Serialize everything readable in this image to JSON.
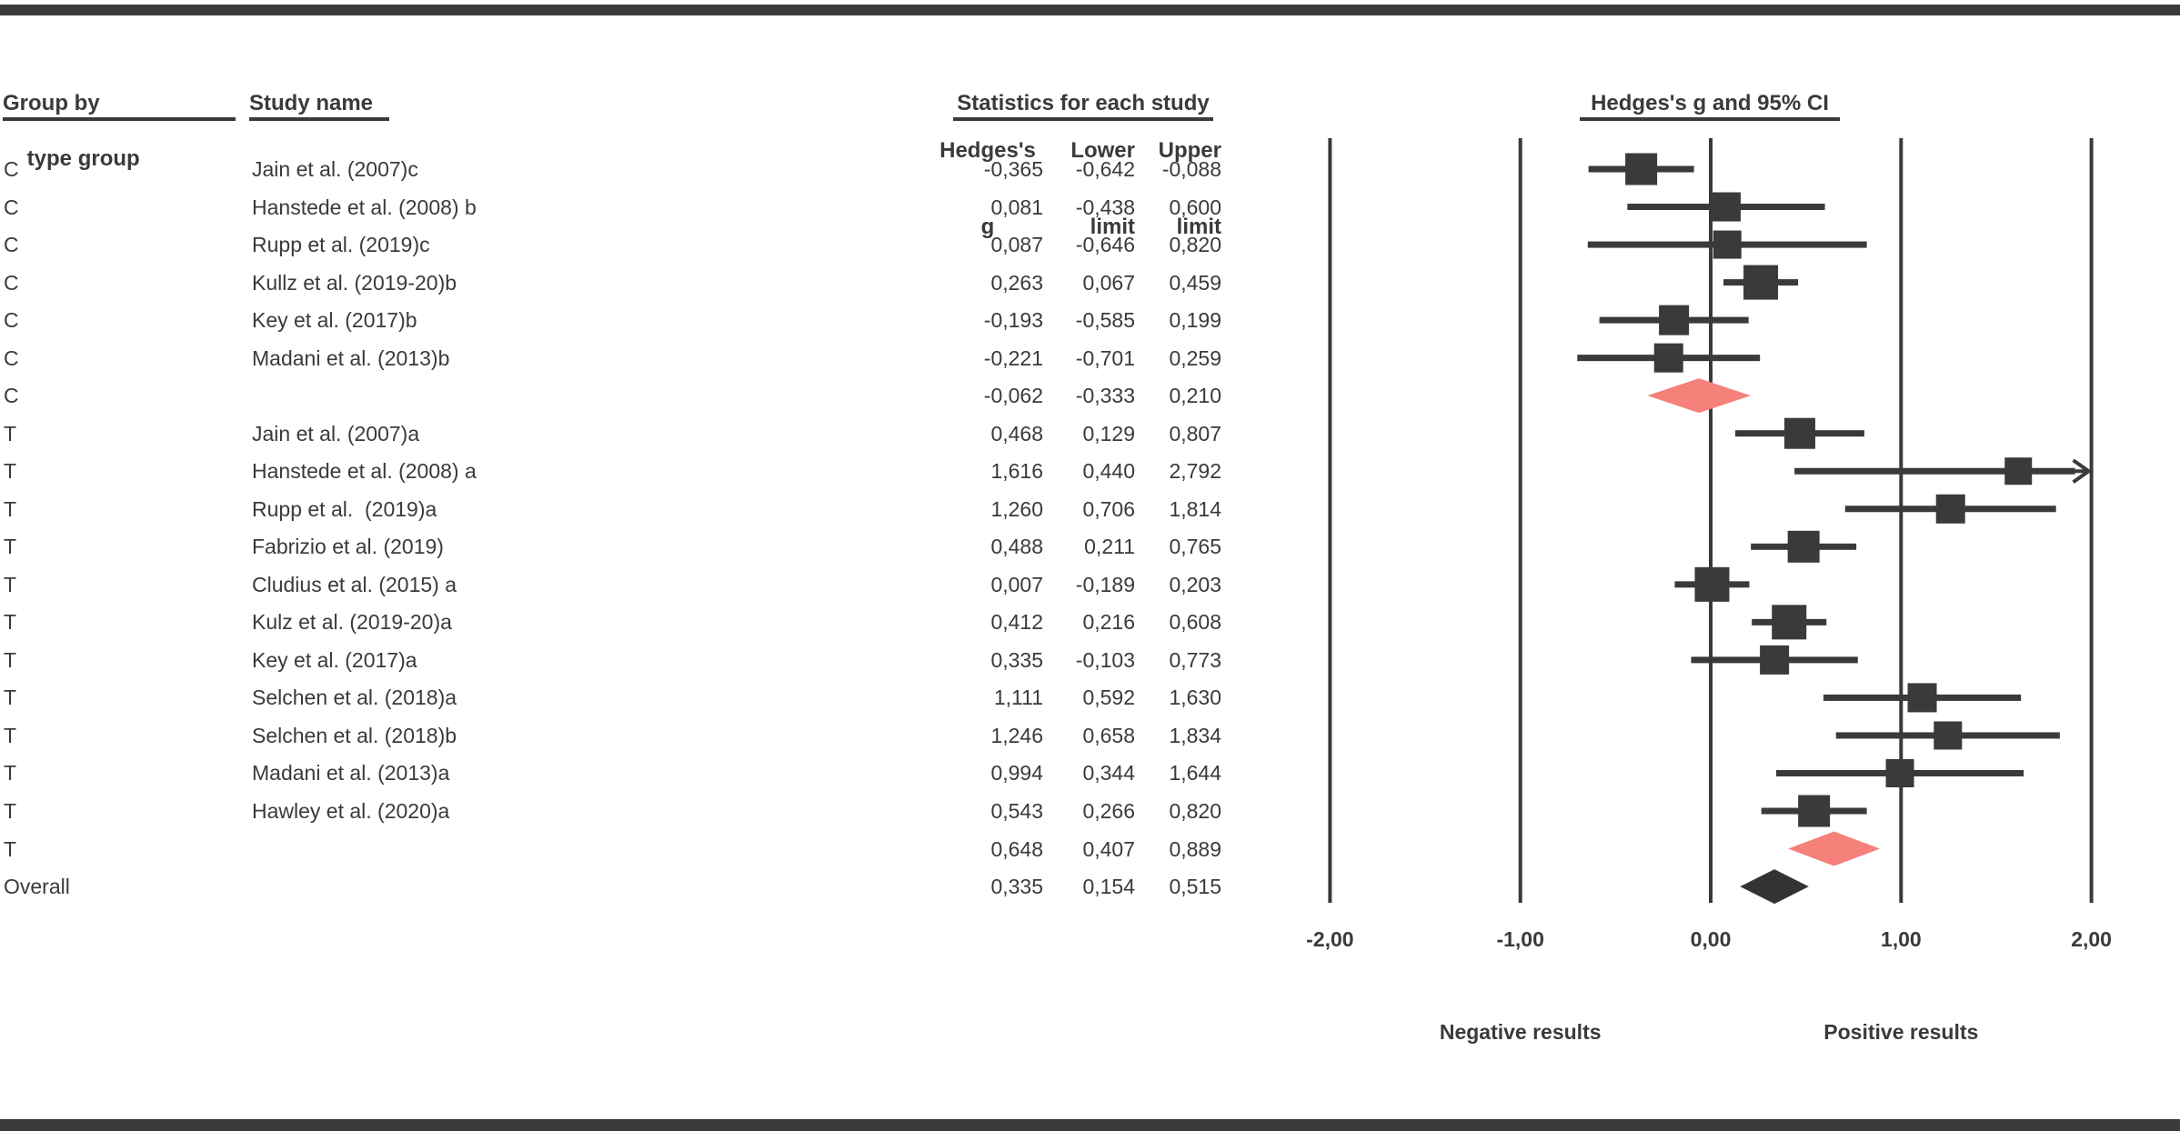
{
  "frame": {
    "top_rule": "decorative-top-rule",
    "bottom_rule": "decorative-bottom-rule"
  },
  "headers": {
    "group_by_line1": "Group by",
    "group_by_line2": "type group",
    "study_name": "Study name",
    "statistics": "Statistics for each study",
    "plot_title": "Hedges's g and 95% CI",
    "col_g_line1": "Hedges's",
    "col_g_line2": "g",
    "col_lower_line1": "Lower",
    "col_lower_line2": "limit",
    "col_upper_line1": "Upper",
    "col_upper_line2": "limit"
  },
  "colors": {
    "ink": "#3a3a3a",
    "bar_rule": "#3b3b3b",
    "summary_diamond": "#f5817a",
    "overall_diamond": "#333333"
  },
  "axis": {
    "tick_labels": [
      "-2,00",
      "-1,00",
      "0,00",
      "1,00",
      "2,00"
    ],
    "tick_values": [
      -2,
      -1,
      0,
      1,
      2
    ],
    "annotation_negative": "Negative results",
    "annotation_positive": "Positive results"
  },
  "chart_data": {
    "type": "forest",
    "effect_measure": "Hedges's g",
    "ci_level": "95%",
    "x_range": [
      -2,
      2
    ],
    "grouping_label": "type group",
    "rows": [
      {
        "group": "C",
        "study": "Jain et al. (2007)c",
        "g": -0.365,
        "lower": -0.642,
        "upper": -0.088,
        "g_text": "-0,365",
        "lower_text": "-0,642",
        "upper_text": "-0,088",
        "kind": "study"
      },
      {
        "group": "C",
        "study": "Hanstede et al. (2008) b",
        "g": 0.081,
        "lower": -0.438,
        "upper": 0.6,
        "g_text": "0,081",
        "lower_text": "-0,438",
        "upper_text": "0,600",
        "kind": "study"
      },
      {
        "group": "C",
        "study": "Rupp et al. (2019)c",
        "g": 0.087,
        "lower": -0.646,
        "upper": 0.82,
        "g_text": "0,087",
        "lower_text": "-0,646",
        "upper_text": "0,820",
        "kind": "study"
      },
      {
        "group": "C",
        "study": "Kullz et al. (2019-20)b",
        "g": 0.263,
        "lower": 0.067,
        "upper": 0.459,
        "g_text": "0,263",
        "lower_text": "0,067",
        "upper_text": "0,459",
        "kind": "study"
      },
      {
        "group": "C",
        "study": "Key et al. (2017)b",
        "g": -0.193,
        "lower": -0.585,
        "upper": 0.199,
        "g_text": "-0,193",
        "lower_text": "-0,585",
        "upper_text": "0,199",
        "kind": "study"
      },
      {
        "group": "C",
        "study": "Madani et al. (2013)b",
        "g": -0.221,
        "lower": -0.701,
        "upper": 0.259,
        "g_text": "-0,221",
        "lower_text": "-0,701",
        "upper_text": "0,259",
        "kind": "study"
      },
      {
        "group": "C",
        "study": "",
        "g": -0.062,
        "lower": -0.333,
        "upper": 0.21,
        "g_text": "-0,062",
        "lower_text": "-0,333",
        "upper_text": "0,210",
        "kind": "summary"
      },
      {
        "group": "T",
        "study": "Jain et al. (2007)a",
        "g": 0.468,
        "lower": 0.129,
        "upper": 0.807,
        "g_text": "0,468",
        "lower_text": "0,129",
        "upper_text": "0,807",
        "kind": "study"
      },
      {
        "group": "T",
        "study": "Hanstede et al. (2008) a",
        "g": 1.616,
        "lower": 0.44,
        "upper": 2.792,
        "g_text": "1,616",
        "lower_text": "0,440",
        "upper_text": "2,792",
        "kind": "study"
      },
      {
        "group": "T",
        "study": "Rupp et al.  (2019)a",
        "g": 1.26,
        "lower": 0.706,
        "upper": 1.814,
        "g_text": "1,260",
        "lower_text": "0,706",
        "upper_text": "1,814",
        "kind": "study"
      },
      {
        "group": "T",
        "study": "Fabrizio et al. (2019)",
        "g": 0.488,
        "lower": 0.211,
        "upper": 0.765,
        "g_text": "0,488",
        "lower_text": "0,211",
        "upper_text": "0,765",
        "kind": "study"
      },
      {
        "group": "T",
        "study": "Cludius et al. (2015) a",
        "g": 0.007,
        "lower": -0.189,
        "upper": 0.203,
        "g_text": "0,007",
        "lower_text": "-0,189",
        "upper_text": "0,203",
        "kind": "study"
      },
      {
        "group": "T",
        "study": "Kulz et al. (2019-20)a",
        "g": 0.412,
        "lower": 0.216,
        "upper": 0.608,
        "g_text": "0,412",
        "lower_text": "0,216",
        "upper_text": "0,608",
        "kind": "study"
      },
      {
        "group": "T",
        "study": "Key et al. (2017)a",
        "g": 0.335,
        "lower": -0.103,
        "upper": 0.773,
        "g_text": "0,335",
        "lower_text": "-0,103",
        "upper_text": "0,773",
        "kind": "study"
      },
      {
        "group": "T",
        "study": "Selchen et al. (2018)a",
        "g": 1.111,
        "lower": 0.592,
        "upper": 1.63,
        "g_text": "1,111",
        "lower_text": "0,592",
        "upper_text": "1,630",
        "kind": "study"
      },
      {
        "group": "T",
        "study": "Selchen et al. (2018)b",
        "g": 1.246,
        "lower": 0.658,
        "upper": 1.834,
        "g_text": "1,246",
        "lower_text": "0,658",
        "upper_text": "1,834",
        "kind": "study"
      },
      {
        "group": "T",
        "study": "Madani et al. (2013)a",
        "g": 0.994,
        "lower": 0.344,
        "upper": 1.644,
        "g_text": "0,994",
        "lower_text": "0,344",
        "upper_text": "1,644",
        "kind": "study"
      },
      {
        "group": "T",
        "study": "Hawley et al. (2020)a",
        "g": 0.543,
        "lower": 0.266,
        "upper": 0.82,
        "g_text": "0,543",
        "lower_text": "0,266",
        "upper_text": "0,820",
        "kind": "study"
      },
      {
        "group": "T",
        "study": "",
        "g": 0.648,
        "lower": 0.407,
        "upper": 0.889,
        "g_text": "0,648",
        "lower_text": "0,407",
        "upper_text": "0,889",
        "kind": "summary"
      },
      {
        "group": "Overall",
        "study": "",
        "g": 0.335,
        "lower": 0.154,
        "upper": 0.515,
        "g_text": "0,335",
        "lower_text": "0,154",
        "upper_text": "0,515",
        "kind": "overall"
      }
    ]
  }
}
